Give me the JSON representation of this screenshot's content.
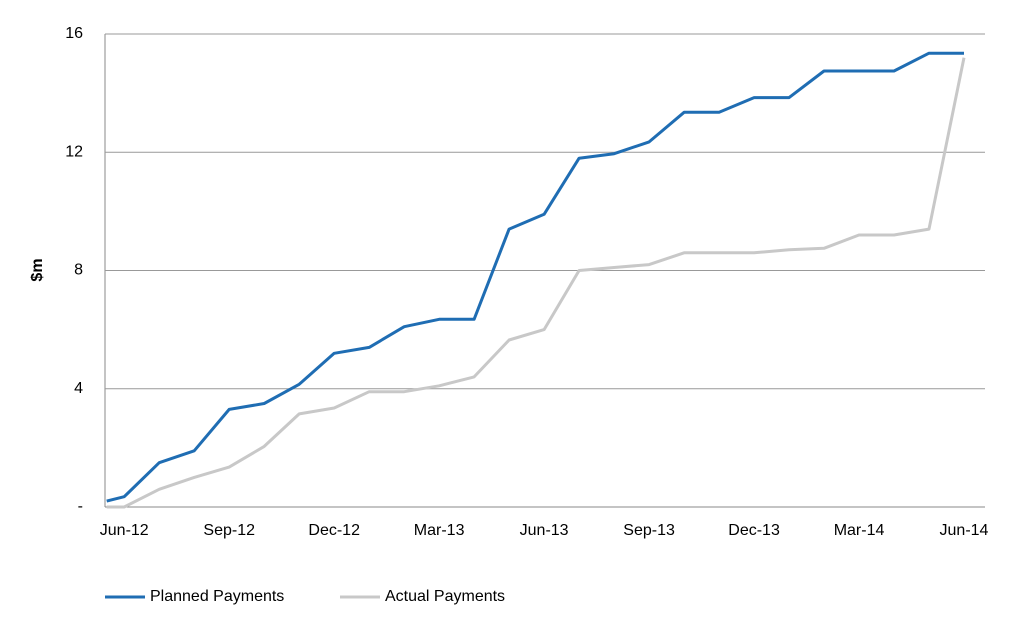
{
  "chart_data": {
    "type": "line",
    "ylabel": "$m",
    "x": [
      -0.5,
      0,
      1,
      2,
      3,
      4,
      5,
      6,
      7,
      8,
      9,
      10,
      11,
      12,
      13,
      14,
      15,
      16,
      17,
      18,
      19,
      20,
      21,
      22,
      23,
      24
    ],
    "xlim": [
      -0.55,
      24.6
    ],
    "xticks": [
      {
        "value": 0,
        "label": "Jun-12"
      },
      {
        "value": 3,
        "label": "Sep-12"
      },
      {
        "value": 6,
        "label": "Dec-12"
      },
      {
        "value": 9,
        "label": "Mar-13"
      },
      {
        "value": 12,
        "label": "Jun-13"
      },
      {
        "value": 15,
        "label": "Sep-13"
      },
      {
        "value": 18,
        "label": "Dec-13"
      },
      {
        "value": 21,
        "label": "Mar-14"
      },
      {
        "value": 24,
        "label": "Jun-14"
      }
    ],
    "ylim": [
      0,
      16
    ],
    "yticks": [
      {
        "value": 0,
        "label": "-"
      },
      4,
      8,
      12,
      16
    ],
    "grid": true,
    "legend": "bottom",
    "series": [
      {
        "name": "Planned Payments",
        "color": "#1f6db3",
        "values": [
          0.2,
          0.35,
          1.5,
          1.9,
          3.3,
          3.5,
          4.15,
          5.2,
          5.4,
          6.1,
          6.35,
          6.35,
          9.4,
          9.9,
          11.8,
          11.95,
          12.35,
          13.35,
          13.35,
          13.85,
          13.85,
          14.75,
          14.75,
          14.75,
          15.35,
          15.35
        ]
      },
      {
        "name": "Actual Payments",
        "color": "#c8c8c8",
        "values": [
          0,
          0,
          0.6,
          1.0,
          1.35,
          2.05,
          3.15,
          3.35,
          3.9,
          3.9,
          4.1,
          4.4,
          5.65,
          6.0,
          8.0,
          8.1,
          8.2,
          8.6,
          8.6,
          8.6,
          8.7,
          8.75,
          9.2,
          9.2,
          9.4,
          15.2
        ]
      }
    ]
  }
}
